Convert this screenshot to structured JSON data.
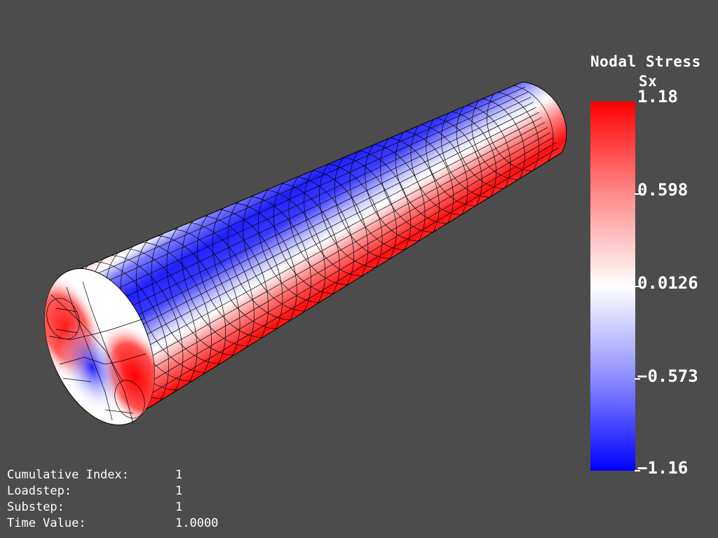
{
  "legend": {
    "title_line1": "Nodal Stress",
    "title_line2": "Sx",
    "ticks": [
      "1.18",
      "0.598",
      "0.0126",
      "−0.573",
      "−1.16"
    ],
    "colors": {
      "max": "#ff0000",
      "mid": "#ffffff",
      "min": "#0000ff"
    }
  },
  "info": [
    {
      "label": "Cumulative Index:",
      "value": "1"
    },
    {
      "label": "Loadstep:",
      "value": "1"
    },
    {
      "label": "Substep:",
      "value": "1"
    },
    {
      "label": "Time Value:",
      "value": "1.0000"
    }
  ],
  "model": {
    "shape": "cylinder",
    "mesh": "hexahedral",
    "background": "#4c4c4c"
  }
}
